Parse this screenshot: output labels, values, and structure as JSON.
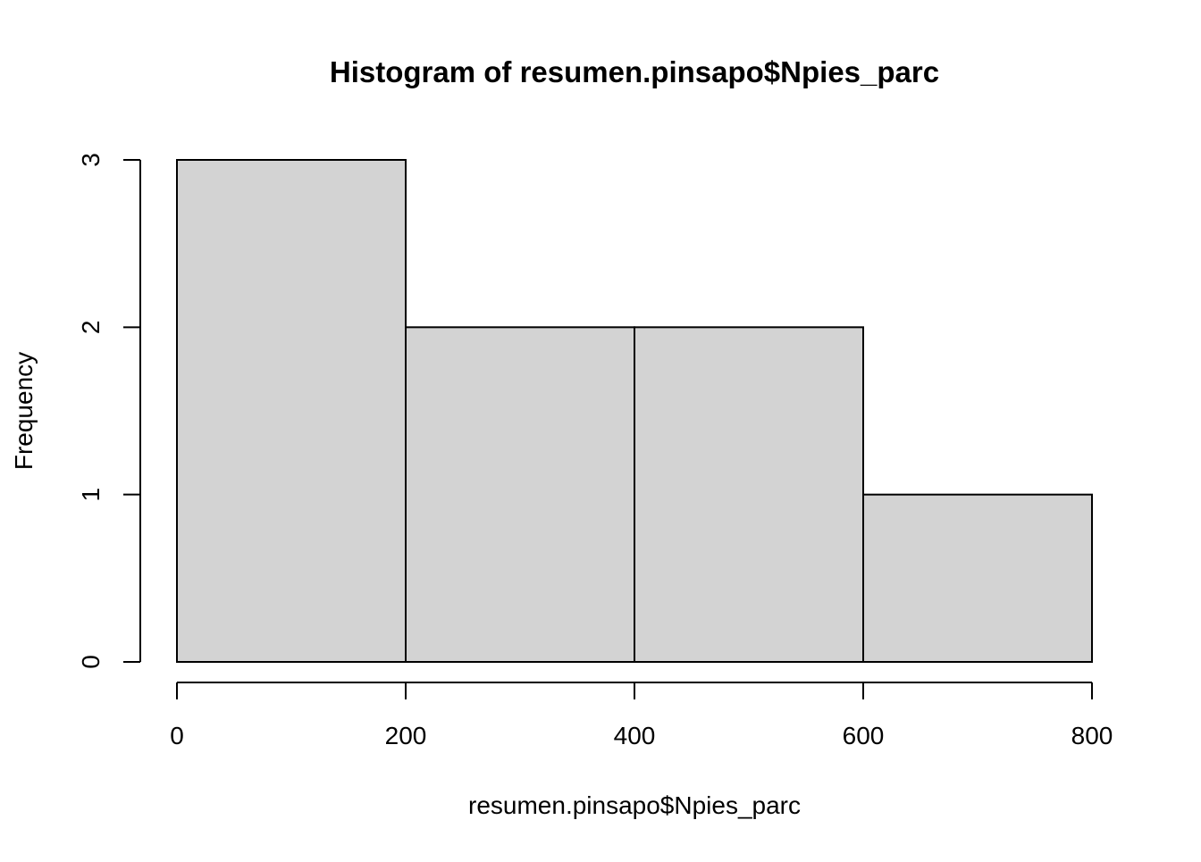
{
  "chart_data": {
    "type": "bar",
    "title": "Histogram of resumen.pinsapo$Npies_parc",
    "xlabel": "resumen.pinsapo$Npies_parc",
    "ylabel": "Frequency",
    "bins": [
      {
        "start": 0,
        "end": 200,
        "count": 3
      },
      {
        "start": 200,
        "end": 400,
        "count": 2
      },
      {
        "start": 400,
        "end": 600,
        "count": 2
      },
      {
        "start": 600,
        "end": 800,
        "count": 1
      }
    ],
    "x_ticks": [
      0,
      200,
      400,
      600,
      800
    ],
    "x_tick_labels": [
      "0",
      "200",
      "400",
      "600",
      "800"
    ],
    "y_ticks": [
      0,
      1,
      2,
      3
    ],
    "y_tick_labels": [
      "0",
      "1",
      "2",
      "3"
    ],
    "xlim": [
      0,
      800
    ],
    "ylim": [
      0,
      3
    ],
    "bar_fill": "#d3d3d3",
    "bar_stroke": "#000000",
    "grid": false,
    "legend": "none"
  }
}
